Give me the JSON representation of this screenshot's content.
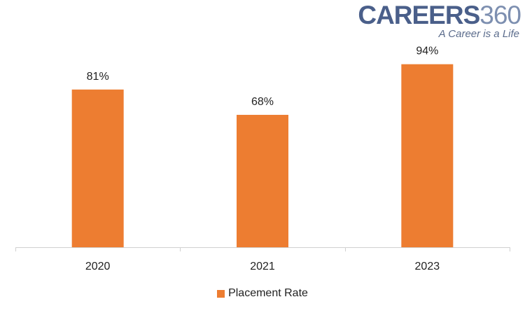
{
  "logo": {
    "main_text": "CAREERS",
    "main_number": "360",
    "tagline": "A Career is a Life",
    "colors": {
      "main": "#4a5f8a",
      "number": "#7d8fb0",
      "tagline": "#5b6c8c"
    }
  },
  "chart_data": {
    "type": "bar",
    "categories": [
      "2020",
      "2021",
      "2023"
    ],
    "series": [
      {
        "name": "Placement Rate",
        "values": [
          81,
          68,
          94
        ],
        "data_labels": [
          "81%",
          "68%",
          "94%"
        ],
        "color": "#ed7d31"
      }
    ],
    "ylim": [
      0,
      100
    ],
    "grid": false,
    "legend_position": "bottom",
    "title": "",
    "xlabel": "",
    "ylabel": ""
  }
}
